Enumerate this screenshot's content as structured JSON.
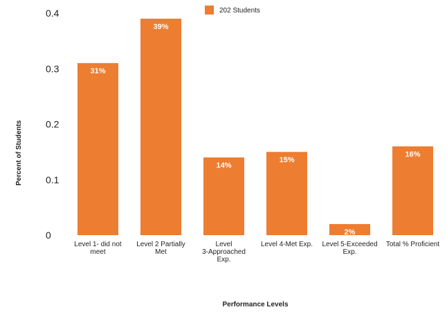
{
  "chart_data": {
    "type": "bar",
    "title": "",
    "xlabel": "Performance Levels",
    "ylabel": "Percent of Students",
    "categories": [
      [
        "Level 1- did not",
        "meet"
      ],
      [
        "Level 2 Partially",
        "Met"
      ],
      [
        "Level",
        "3-Approached",
        "Exp."
      ],
      [
        "Level 4-Met Exp."
      ],
      [
        "Level 5-Exceeded",
        "Exp."
      ],
      [
        "Total % Proficient"
      ]
    ],
    "series": [
      {
        "name": "202 Students",
        "values": [
          0.31,
          0.39,
          0.14,
          0.15,
          0.02,
          0.16
        ],
        "data_labels": [
          "31%",
          "39%",
          "14%",
          "15%",
          "2%",
          "16%"
        ],
        "color": "#ED7D31"
      }
    ],
    "yticks": [
      {
        "value": 0,
        "label": "0"
      },
      {
        "value": 0.1,
        "label": "0.1"
      },
      {
        "value": 0.2,
        "label": "0.2"
      },
      {
        "value": 0.3,
        "label": "0.3"
      },
      {
        "value": 0.4,
        "label": "0.4"
      }
    ],
    "ylim": [
      0,
      0.4
    ],
    "grid": false,
    "legend_position": "top-center"
  }
}
